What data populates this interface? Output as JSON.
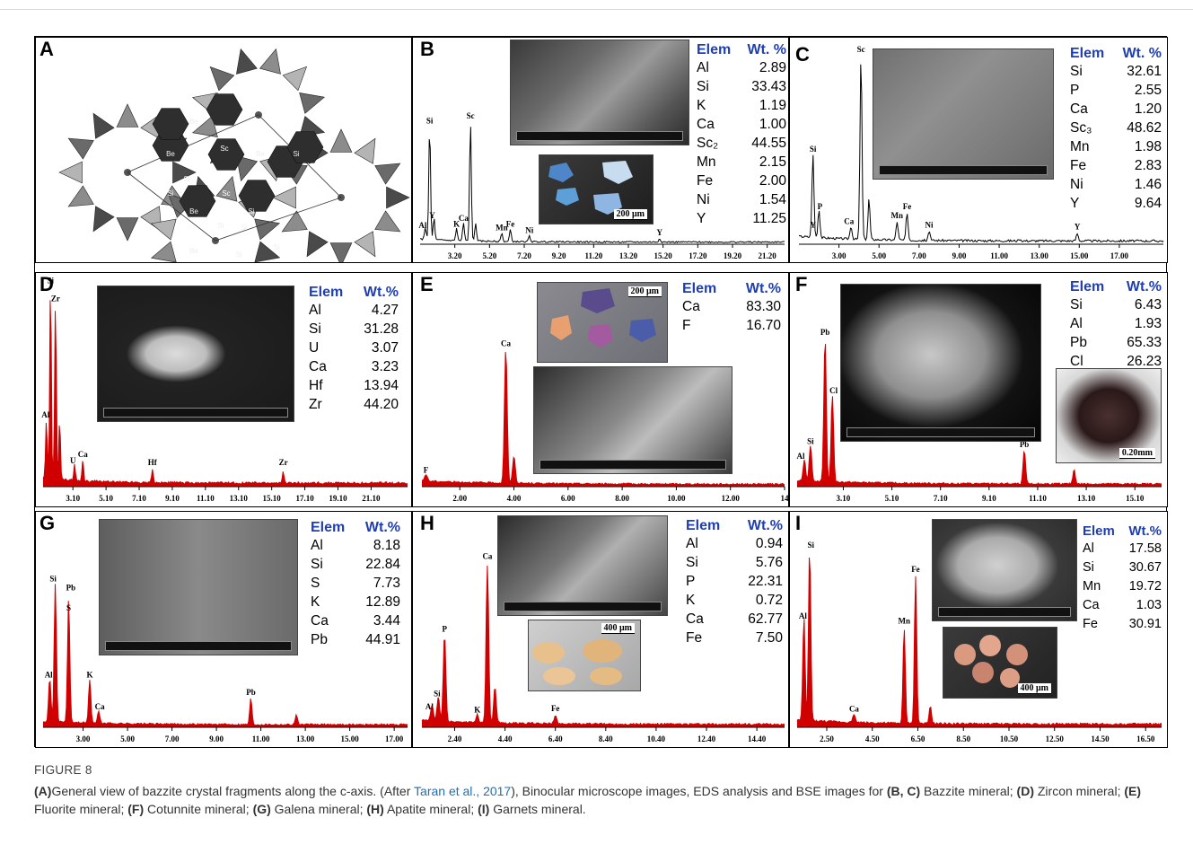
{
  "figure": {
    "label": "FIGURE 8",
    "caption": {
      "p1": "General view of bazzite crystal fragments along the c-axis. (After ",
      "link": "Taran et al., 2017",
      "p2": "), Binocular microscope images, EDS analysis and BSE images for ",
      "bc": "(B, C)",
      "t_bc": " Bazzite mineral; ",
      "d": "(D)",
      "t_d": " Zircon mineral; ",
      "e": "(E)",
      "t_e": " Fluorite mineral; ",
      "f": "(F)",
      "t_f": " Cotunnite mineral; ",
      "g": "(G)",
      "t_g": " Galena mineral; ",
      "h": "(H)",
      "t_h": " Apatite mineral; ",
      "i": "(I)",
      "t_i": " Garnets mineral.",
      "a": "(A)"
    }
  },
  "panels": {
    "A": {
      "label": "A",
      "atoms": [
        "Be",
        "Sc",
        "Si",
        "Be",
        "Sc",
        "Si",
        "Be",
        "Si",
        "Sc",
        "Be",
        "Si",
        "Si",
        "Be",
        "Si",
        "Si",
        "Si"
      ]
    },
    "B": {
      "label": "B",
      "scale": "200 μm",
      "table": {
        "h1": "Elem",
        "h2": "Wt. %",
        "rows": [
          [
            "Al",
            "2.89"
          ],
          [
            "Si",
            "33.43"
          ],
          [
            "K",
            "1.19"
          ],
          [
            "Ca",
            "1.00"
          ],
          [
            "Sc₂",
            "44.55"
          ],
          [
            "Mn",
            "2.15"
          ],
          [
            "Fe",
            "2.00"
          ],
          [
            "Ni",
            "1.54"
          ],
          [
            "Y",
            "11.25"
          ]
        ]
      }
    },
    "C": {
      "label": "C",
      "table": {
        "h1": "Elem",
        "h2": "Wt. %",
        "rows": [
          [
            "Si",
            "32.61"
          ],
          [
            "P",
            "2.55"
          ],
          [
            "Ca",
            "1.20"
          ],
          [
            "Sc₃",
            "48.62"
          ],
          [
            "Mn",
            "1.98"
          ],
          [
            "Fe",
            "2.83"
          ],
          [
            "Ni",
            "1.46"
          ],
          [
            "Y",
            "9.64"
          ]
        ]
      }
    },
    "D": {
      "label": "D",
      "table": {
        "h1": "Elem",
        "h2": "Wt.%",
        "rows": [
          [
            "Al",
            "4.27"
          ],
          [
            "Si",
            "31.28"
          ],
          [
            "U",
            "3.07"
          ],
          [
            "Ca",
            "3.23"
          ],
          [
            "Hf",
            "13.94"
          ],
          [
            "Zr",
            "44.20"
          ]
        ]
      }
    },
    "E": {
      "label": "E",
      "scale": "200 μm",
      "table": {
        "h1": "Elem",
        "h2": "Wt.%",
        "rows": [
          [
            "Ca",
            "83.30"
          ],
          [
            "F",
            "16.70"
          ]
        ]
      }
    },
    "F": {
      "label": "F",
      "scale": "0.20mm",
      "table": {
        "h1": "Elem",
        "h2": "Wt.%",
        "rows": [
          [
            "Si",
            "6.43"
          ],
          [
            "Al",
            "1.93"
          ],
          [
            "Pb",
            "65.33"
          ],
          [
            "Cl",
            "26.23"
          ]
        ]
      }
    },
    "G": {
      "label": "G",
      "table": {
        "h1": "Elem",
        "h2": "Wt.%",
        "rows": [
          [
            "Al",
            "8.18"
          ],
          [
            "Si",
            "22.84"
          ],
          [
            "S",
            "7.73"
          ],
          [
            "K",
            "12.89"
          ],
          [
            "Ca",
            "3.44"
          ],
          [
            "Pb",
            "44.91"
          ]
        ]
      }
    },
    "H": {
      "label": "H",
      "scale": "400 μm",
      "table": {
        "h1": "Elem",
        "h2": "Wt.%",
        "rows": [
          [
            "Al",
            "0.94"
          ],
          [
            "Si",
            "5.76"
          ],
          [
            "P",
            "22.31"
          ],
          [
            "K",
            "0.72"
          ],
          [
            "Ca",
            "62.77"
          ],
          [
            "Fe",
            "7.50"
          ]
        ]
      }
    },
    "I": {
      "label": "I",
      "scale": "400 μm",
      "table": {
        "h1": "Elem",
        "h2": "Wt.%",
        "rows": [
          [
            "Al",
            "17.58"
          ],
          [
            "Si",
            "30.67"
          ],
          [
            "Mn",
            "19.72"
          ],
          [
            "Ca",
            "1.03"
          ],
          [
            "Fe",
            "30.91"
          ]
        ]
      }
    }
  },
  "spectra": {
    "B": {
      "color": "#000000",
      "xlim": [
        1.2,
        22.2
      ],
      "ticks": [
        "3.20",
        "5.20",
        "7.20",
        "9.20",
        "11.20",
        "13.20",
        "15.20",
        "17.20",
        "19.20",
        "21.20"
      ],
      "peaks": [
        [
          1.5,
          0.1
        ],
        [
          1.75,
          0.95
        ],
        [
          2.0,
          0.18
        ],
        [
          3.3,
          0.1
        ],
        [
          3.7,
          0.15
        ],
        [
          4.1,
          1.0
        ],
        [
          4.4,
          0.15
        ],
        [
          5.9,
          0.07
        ],
        [
          6.4,
          0.1
        ],
        [
          7.5,
          0.05
        ],
        [
          15.0,
          0.03
        ]
      ],
      "labels": [
        [
          "Al",
          1.35,
          0.12
        ],
        [
          "Y",
          1.9,
          0.2
        ],
        [
          "Si",
          1.75,
          0.99
        ],
        [
          "K",
          3.3,
          0.13
        ],
        [
          "Ca",
          3.7,
          0.18
        ],
        [
          "Sc",
          4.1,
          1.03
        ],
        [
          "Mn",
          5.9,
          0.1
        ],
        [
          "Fe",
          6.4,
          0.13
        ],
        [
          "Ni",
          7.5,
          0.08
        ],
        [
          "Y",
          15.0,
          0.06
        ]
      ]
    },
    "C": {
      "color": "#000000",
      "xlim": [
        1.0,
        19.2
      ],
      "ticks": [
        "3.00",
        "5.00",
        "7.00",
        "9.00",
        "11.00",
        "13.00",
        "15.00",
        "17.00"
      ],
      "peaks": [
        [
          1.7,
          0.45
        ],
        [
          2.0,
          0.15
        ],
        [
          3.6,
          0.07
        ],
        [
          4.1,
          1.0
        ],
        [
          4.5,
          0.22
        ],
        [
          5.9,
          0.1
        ],
        [
          6.4,
          0.15
        ],
        [
          7.5,
          0.05
        ],
        [
          14.9,
          0.04
        ]
      ],
      "labels": [
        [
          "Si",
          1.7,
          0.49
        ],
        [
          "P",
          2.05,
          0.18
        ],
        [
          "Y",
          1.7,
          0.08
        ],
        [
          "Ca",
          3.5,
          0.1
        ],
        [
          "Sc",
          4.1,
          1.03
        ],
        [
          "Mn",
          5.9,
          0.13
        ],
        [
          "Fe",
          6.4,
          0.18
        ],
        [
          "Ni",
          7.5,
          0.08
        ],
        [
          "Y",
          14.9,
          0.07
        ]
      ]
    },
    "D": {
      "color": "#d00000",
      "xlim": [
        1.3,
        23.3
      ],
      "ticks": [
        "3.10",
        "5.10",
        "7.10",
        "9.10",
        "11.10",
        "13.10",
        "15.10",
        "17.10",
        "19.10",
        "21.10"
      ],
      "peaks": [
        [
          1.5,
          0.3
        ],
        [
          1.75,
          1.0
        ],
        [
          2.05,
          0.9
        ],
        [
          2.3,
          0.3
        ],
        [
          3.2,
          0.08
        ],
        [
          3.7,
          0.1
        ],
        [
          7.9,
          0.07
        ],
        [
          15.8,
          0.06
        ]
      ],
      "labels": [
        [
          "Al",
          1.45,
          0.34
        ],
        [
          "Si",
          1.75,
          1.02
        ],
        [
          "Zr",
          2.05,
          0.93
        ],
        [
          "U",
          3.1,
          0.11
        ],
        [
          "Ca",
          3.7,
          0.14
        ],
        [
          "Hf",
          7.9,
          0.1
        ],
        [
          "Zr",
          15.8,
          0.1
        ]
      ]
    },
    "E": {
      "color": "#d00000",
      "xlim": [
        0.6,
        14.0
      ],
      "ticks": [
        "2.00",
        "4.00",
        "6.00",
        "8.00",
        "10.00",
        "12.00",
        "14"
      ],
      "peaks": [
        [
          0.75,
          0.05
        ],
        [
          3.7,
          1.0
        ],
        [
          4.0,
          0.2
        ]
      ],
      "labels": [
        [
          "F",
          0.75,
          0.09
        ],
        [
          "Ca",
          3.7,
          1.03
        ]
      ]
    },
    "F": {
      "color": "#d00000",
      "xlim": [
        1.2,
        16.2
      ],
      "ticks": [
        "3.10",
        "5.10",
        "7.10",
        "9.10",
        "11.10",
        "13.10",
        "15.10"
      ],
      "peaks": [
        [
          1.5,
          0.15
        ],
        [
          1.75,
          0.25
        ],
        [
          2.35,
          1.0
        ],
        [
          2.65,
          0.6
        ],
        [
          10.55,
          0.23
        ],
        [
          12.6,
          0.1
        ]
      ],
      "labels": [
        [
          "Al",
          1.35,
          0.18
        ],
        [
          "Si",
          1.75,
          0.28
        ],
        [
          "Pb",
          2.35,
          1.03
        ],
        [
          "Cl",
          2.7,
          0.63
        ],
        [
          "Pb",
          10.55,
          0.26
        ]
      ]
    },
    "G": {
      "color": "#d00000",
      "xlim": [
        1.2,
        17.6
      ],
      "ticks": [
        "3.00",
        "5.00",
        "7.00",
        "9.00",
        "11.00",
        "13.00",
        "15.00",
        "17.00"
      ],
      "peaks": [
        [
          1.5,
          0.3
        ],
        [
          1.75,
          0.95
        ],
        [
          2.35,
          0.85
        ],
        [
          3.3,
          0.3
        ],
        [
          3.7,
          0.08
        ],
        [
          10.55,
          0.18
        ],
        [
          12.6,
          0.07
        ]
      ],
      "labels": [
        [
          "Al",
          1.45,
          0.33
        ],
        [
          "Si",
          1.65,
          0.99
        ],
        [
          "Pb",
          2.45,
          0.93
        ],
        [
          "S",
          2.35,
          0.79
        ],
        [
          "K",
          3.3,
          0.33
        ],
        [
          "Ca",
          3.75,
          0.11
        ],
        [
          "Pb",
          10.55,
          0.21
        ]
      ]
    },
    "H": {
      "color": "#d00000",
      "xlim": [
        1.1,
        15.5
      ],
      "ticks": [
        "2.40",
        "4.40",
        "6.40",
        "8.40",
        "10.40",
        "12.40",
        "14.40"
      ],
      "peaks": [
        [
          1.5,
          0.1
        ],
        [
          1.75,
          0.15
        ],
        [
          2.0,
          0.55
        ],
        [
          3.3,
          0.05
        ],
        [
          3.7,
          1.0
        ],
        [
          4.0,
          0.22
        ],
        [
          6.4,
          0.05
        ]
      ],
      "labels": [
        [
          "Al",
          1.4,
          0.1
        ],
        [
          "Si",
          1.7,
          0.18
        ],
        [
          "P",
          2.0,
          0.58
        ],
        [
          "K",
          3.3,
          0.08
        ],
        [
          "Ca",
          3.7,
          1.03
        ],
        [
          "Fe",
          6.4,
          0.09
        ]
      ]
    },
    "I": {
      "color": "#d00000",
      "xlim": [
        1.2,
        17.2
      ],
      "ticks": [
        "2.50",
        "4.50",
        "6.50",
        "8.50",
        "10.50",
        "12.50",
        "14.50",
        "16.50"
      ],
      "peaks": [
        [
          1.5,
          0.6
        ],
        [
          1.75,
          1.0
        ],
        [
          3.7,
          0.05
        ],
        [
          5.9,
          0.55
        ],
        [
          6.4,
          0.85
        ],
        [
          7.05,
          0.1
        ]
      ],
      "labels": [
        [
          "Al",
          1.45,
          0.62
        ],
        [
          "Si",
          1.8,
          1.03
        ],
        [
          "Ca",
          3.7,
          0.08
        ],
        [
          "Mn",
          5.9,
          0.59
        ],
        [
          "Fe",
          6.4,
          0.89
        ]
      ]
    }
  }
}
